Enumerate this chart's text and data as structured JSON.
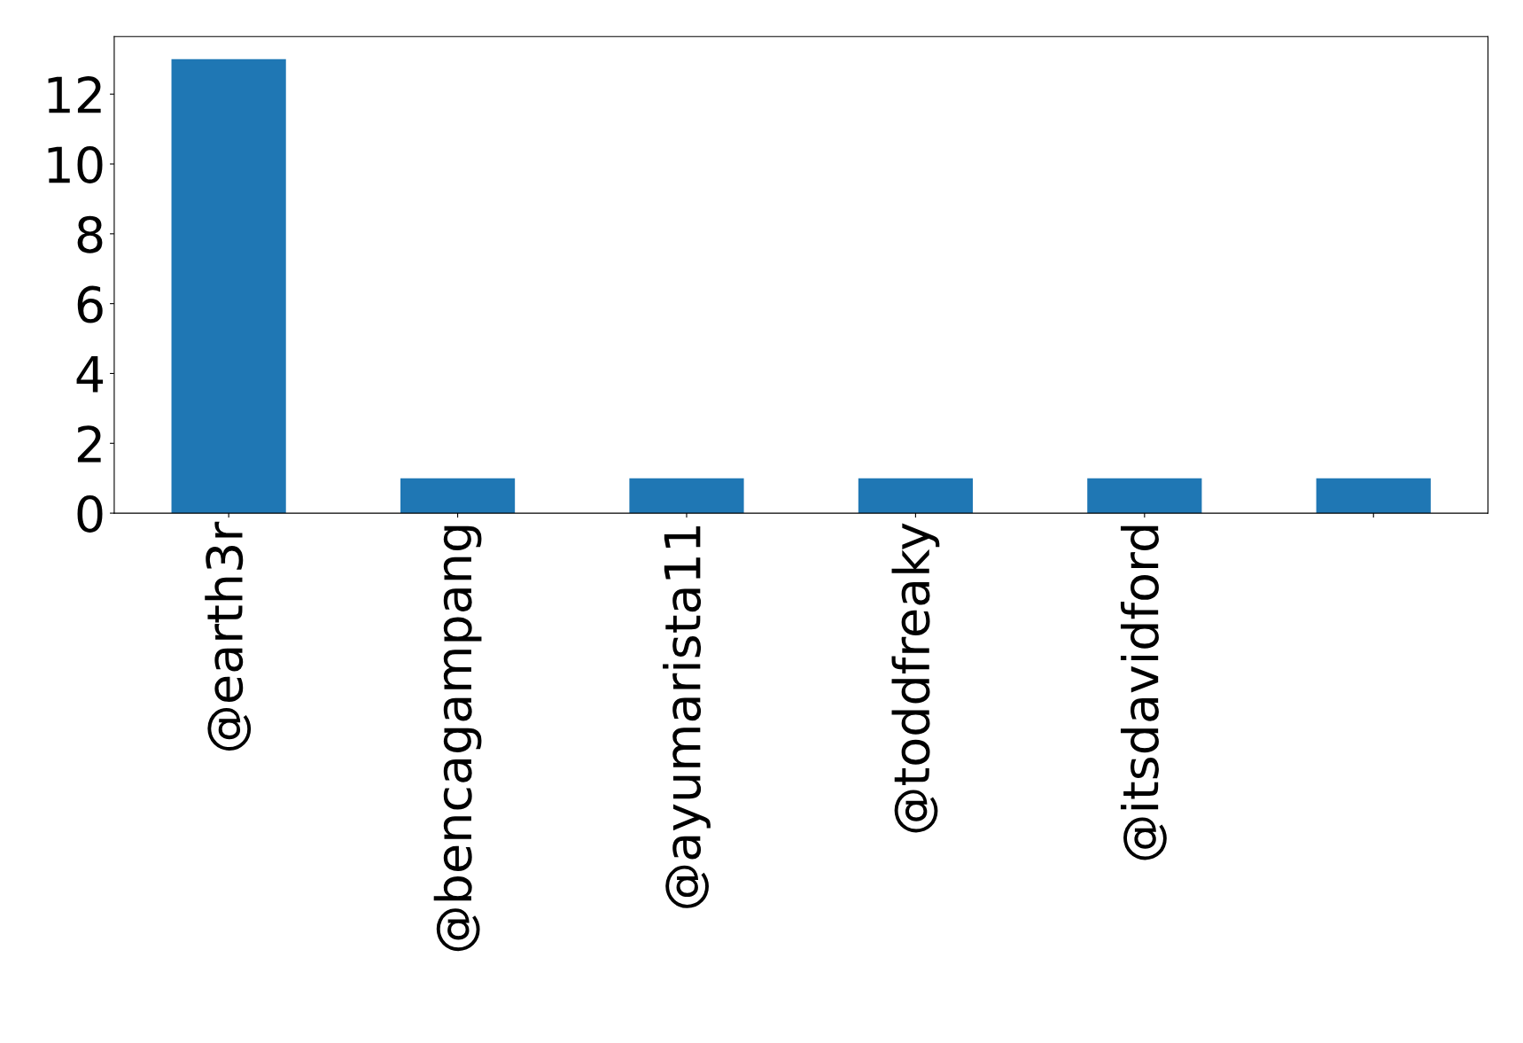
{
  "chart_data": {
    "type": "bar",
    "categories": [
      "@earth3r",
      "@bencagampang",
      "@ayumarista11",
      "@toddfreaky",
      "@itsdavidford",
      null
    ],
    "values": [
      13,
      1,
      1,
      1,
      1,
      1
    ],
    "color": "#1f77b4",
    "ylim": [
      0,
      13.65
    ],
    "yticks": [
      0,
      2,
      4,
      6,
      8,
      10,
      12
    ],
    "grid": false,
    "legend": false
  }
}
